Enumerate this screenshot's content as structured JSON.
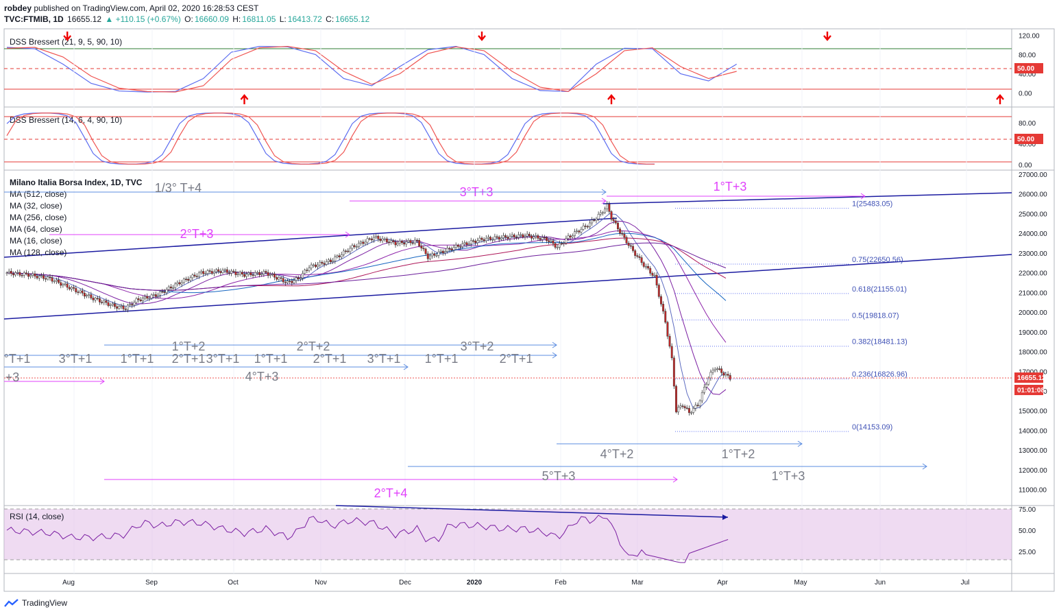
{
  "header": {
    "author": "robdey",
    "published": "published on TradingView.com, April 02, 2020 16:28:53 CEST",
    "symbol": "TVC:FTMIB, 1D",
    "last": "16655.12",
    "change": "▲ +110.15 (+0.67%)",
    "o_label": "O:",
    "o": "16660.09",
    "h_label": "H:",
    "h": "16811.05",
    "l_label": "L:",
    "l": "16413.72",
    "c_label": "C:",
    "c": "16655.12"
  },
  "footer": {
    "brand": "TradingView"
  },
  "colors": {
    "up": "#26a69a",
    "down": "#ef5350",
    "magenta": "#e040fb",
    "gray": "#787b86",
    "blue": "#2962ff",
    "navy": "#1a1aa0"
  },
  "chart_data": [
    {
      "type": "line",
      "pane": "dss1",
      "title": "DSS Bressert (21, 9, 5, 90, 10)",
      "ylim": [
        -15,
        125
      ],
      "y_ticks": [
        "120.00",
        "80.00",
        "40.00",
        "0.00"
      ],
      "level_badge": "50.00",
      "x": [
        0,
        10,
        20,
        30,
        40,
        50,
        60,
        70,
        80,
        90,
        100,
        110,
        120,
        130,
        140,
        150,
        160,
        170,
        180,
        190,
        200,
        210,
        220,
        230,
        240,
        250,
        260
      ],
      "series": [
        {
          "color": "blue",
          "values": [
            95,
            92,
            60,
            20,
            4,
            2,
            3,
            30,
            85,
            97,
            96,
            80,
            30,
            15,
            55,
            90,
            97,
            80,
            30,
            5,
            3,
            60,
            93,
            92,
            40,
            25,
            60
          ]
        },
        {
          "color": "red",
          "values": [
            93,
            95,
            75,
            35,
            10,
            3,
            2,
            15,
            70,
            94,
            97,
            88,
            45,
            18,
            40,
            82,
            96,
            88,
            45,
            12,
            3,
            40,
            88,
            94,
            55,
            30,
            45
          ]
        }
      ],
      "arrows_down_x": [
        14,
        110,
        190,
        285,
        335
      ],
      "arrows_up_x": [
        55,
        140,
        230,
        305,
        370
      ]
    },
    {
      "type": "line",
      "pane": "dss2",
      "title": "DSS Bressert (14, 6, 4, 90, 10)",
      "ylim": [
        -5,
        105
      ],
      "y_ticks": [
        "80.00",
        "40.00",
        "0.00"
      ],
      "level_badge": "50.00"
    },
    {
      "type": "candlestick",
      "pane": "main",
      "title": "Milano Italia Borsa Index, 1D, TVC",
      "ylim": [
        10500,
        27000
      ],
      "y_ticks": [
        "27000.00",
        "26000.00",
        "25000.00",
        "24000.00",
        "23000.00",
        "22000.00",
        "21000.00",
        "20000.00",
        "19000.00",
        "18000.00",
        "17000.00",
        "16000.00",
        "15000.00",
        "14000.00",
        "13000.00",
        "12000.00",
        "11000.00"
      ],
      "x_labels": [
        "Aug",
        "Sep",
        "Oct",
        "Nov",
        "Dec",
        "2020",
        "Feb",
        "Mar",
        "Apr",
        "May",
        "Jun",
        "Jul"
      ],
      "price_badge": "16655.12",
      "countdown_badge": "01:01:08",
      "ma_labels": [
        "MA (512, close)",
        "MA (32, close)",
        "MA (256, close)",
        "MA (64, close)",
        "MA (16, close)",
        "MA (128, close)"
      ],
      "close_path": [
        [
          0,
          22000
        ],
        [
          10,
          21900
        ],
        [
          20,
          21700
        ],
        [
          30,
          21200
        ],
        [
          40,
          20700
        ],
        [
          50,
          20300
        ],
        [
          55,
          20200
        ],
        [
          60,
          20600
        ],
        [
          70,
          20900
        ],
        [
          80,
          21500
        ],
        [
          90,
          22000
        ],
        [
          100,
          22100
        ],
        [
          110,
          21900
        ],
        [
          120,
          22000
        ],
        [
          130,
          21500
        ],
        [
          135,
          21700
        ],
        [
          140,
          22300
        ],
        [
          150,
          22600
        ],
        [
          160,
          23300
        ],
        [
          170,
          23800
        ],
        [
          180,
          23500
        ],
        [
          190,
          23600
        ],
        [
          195,
          22800
        ],
        [
          200,
          23000
        ],
        [
          210,
          23400
        ],
        [
          220,
          23700
        ],
        [
          230,
          23800
        ],
        [
          240,
          23900
        ],
        [
          250,
          23700
        ],
        [
          255,
          23300
        ],
        [
          260,
          23800
        ],
        [
          270,
          24500
        ],
        [
          275,
          25000
        ],
        [
          278,
          25400
        ],
        [
          280,
          24800
        ],
        [
          285,
          23900
        ],
        [
          290,
          23100
        ],
        [
          295,
          22400
        ],
        [
          300,
          21800
        ],
        [
          305,
          19500
        ],
        [
          308,
          17600
        ],
        [
          310,
          15000
        ],
        [
          313,
          15300
        ],
        [
          316,
          14900
        ],
        [
          320,
          15300
        ],
        [
          325,
          16700
        ],
        [
          328,
          17200
        ],
        [
          333,
          16800
        ],
        [
          335,
          16655
        ]
      ],
      "fib_levels": [
        {
          "label": "1(25483.05)",
          "value": 25483.05
        },
        {
          "label": "0.75(22650.56)",
          "value": 22650.56
        },
        {
          "label": "0.618(21155.01)",
          "value": 21155.01
        },
        {
          "label": "0.5(19818.07)",
          "value": 19818.07
        },
        {
          "label": "0.382(18481.13)",
          "value": 18481.13
        },
        {
          "label": "0.236(16826.96)",
          "value": 16826.96
        },
        {
          "label": "0(14153.09)",
          "value": 14153.09
        }
      ],
      "cycle_annotations": {
        "magenta": [
          "1°T+3",
          "3°T+3",
          "2°T+3",
          "2°T+4"
        ],
        "gray": [
          "1/3° T+4",
          "1°T+2",
          "2°T+2",
          "3°T+2",
          "°T+1",
          "3°T+1",
          "1°T+1",
          "2°T+1",
          "3°T+1",
          "1°T+1",
          "2°T+1",
          "3°T+1",
          "1°T+1",
          "2°T+1",
          "+3",
          "4°T+3",
          "4°T+2",
          "1°T+2",
          "5°T+3",
          "1°T+3"
        ]
      }
    },
    {
      "type": "line",
      "pane": "rsi",
      "title": "RSI (14, close)",
      "ylim": [
        10,
        85
      ],
      "y_ticks": [
        "75.00",
        "50.00",
        "25.00"
      ]
    }
  ]
}
